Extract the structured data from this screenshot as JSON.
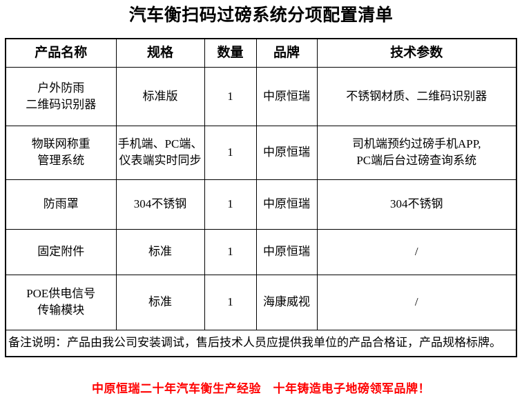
{
  "title": "汽车衡扫码过磅系统分项配置清单",
  "table": {
    "headers": [
      "产品名称",
      "规格",
      "数量",
      "品牌",
      "技术参数"
    ],
    "rows": [
      {
        "name": "户外防雨\n二维码识别器",
        "spec": "标准版",
        "qty": "1",
        "brand": "中原恒瑞",
        "params": "不锈钢材质、二维码识别器"
      },
      {
        "name": "物联网称重\n管理系统",
        "spec": "手机端、PC端、\n仪表端实时同步",
        "qty": "1",
        "brand": "中原恒瑞",
        "params": "司机端预约过磅手机APP,\nPC端后台过磅查询系统"
      },
      {
        "name": "防雨罩",
        "spec": "304不锈钢",
        "qty": "1",
        "brand": "中原恒瑞",
        "params": "304不锈钢"
      },
      {
        "name": "固定附件",
        "spec": "标准",
        "qty": "1",
        "brand": "中原恒瑞",
        "params": "/"
      },
      {
        "name": "POE供电信号\n传输模块",
        "spec": "标准",
        "qty": "1",
        "brand": "海康威视",
        "params": "/"
      }
    ]
  },
  "remark": "备注说明：产品由我公司安装调试，售后技术人员应提供我单位的产品合格证，产品规格标牌。",
  "footer": "中原恒瑞二十年汽车衡生产经验　十年铸造电子地磅领军品牌！",
  "colors": {
    "text": "#000000",
    "border": "#000000",
    "background": "#FFFFFF",
    "accent_red": "#FF0000"
  }
}
